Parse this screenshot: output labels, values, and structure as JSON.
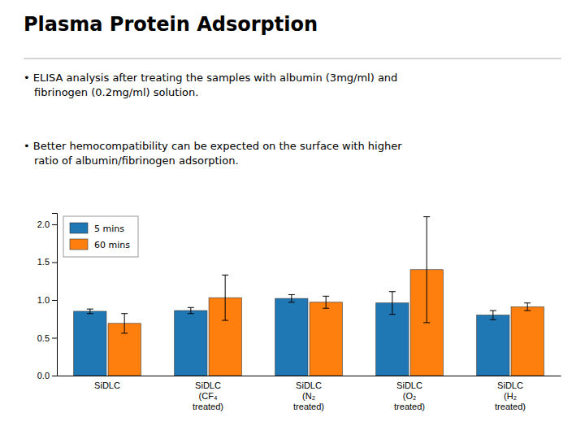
{
  "chart_data": {
    "type": "bar",
    "title": "Plasma Protein Adsorption",
    "annotations": [
      "• ELISA analysis after treating the samples with albumin (3mg/ml) and\nfibrinogen (0.2mg/ml) solution.",
      "• Better hemocompatibility can be expected on the surface with higher\nratio of albumin/fibrinogen adsorption."
    ],
    "categories": [
      "SiDLC",
      "SiDLC\n(CF₄\ntreated)",
      "SiDLC\n(N₂\ntreated)",
      "SiDLC\n(O₂\ntreated)",
      "SiDLC\n(H₂\ntreated)"
    ],
    "series": [
      {
        "name": "5 mins",
        "values": [
          0.85,
          0.86,
          1.02,
          0.96,
          0.8
        ],
        "errors": [
          0.03,
          0.04,
          0.05,
          0.15,
          0.06
        ]
      },
      {
        "name": "60 mins",
        "values": [
          0.69,
          1.03,
          0.97,
          1.4,
          0.91
        ],
        "errors": [
          0.13,
          0.3,
          0.08,
          0.7,
          0.05
        ]
      }
    ],
    "ylim": [
      0.0,
      2.15
    ],
    "yticks": [
      {
        "value": 0,
        "label": "0.0"
      },
      0.5,
      {
        "value": 1,
        "label": "1.0"
      },
      1.5,
      {
        "value": 2,
        "label": "2.0"
      }
    ],
    "legend": "upper left",
    "grid": false
  }
}
